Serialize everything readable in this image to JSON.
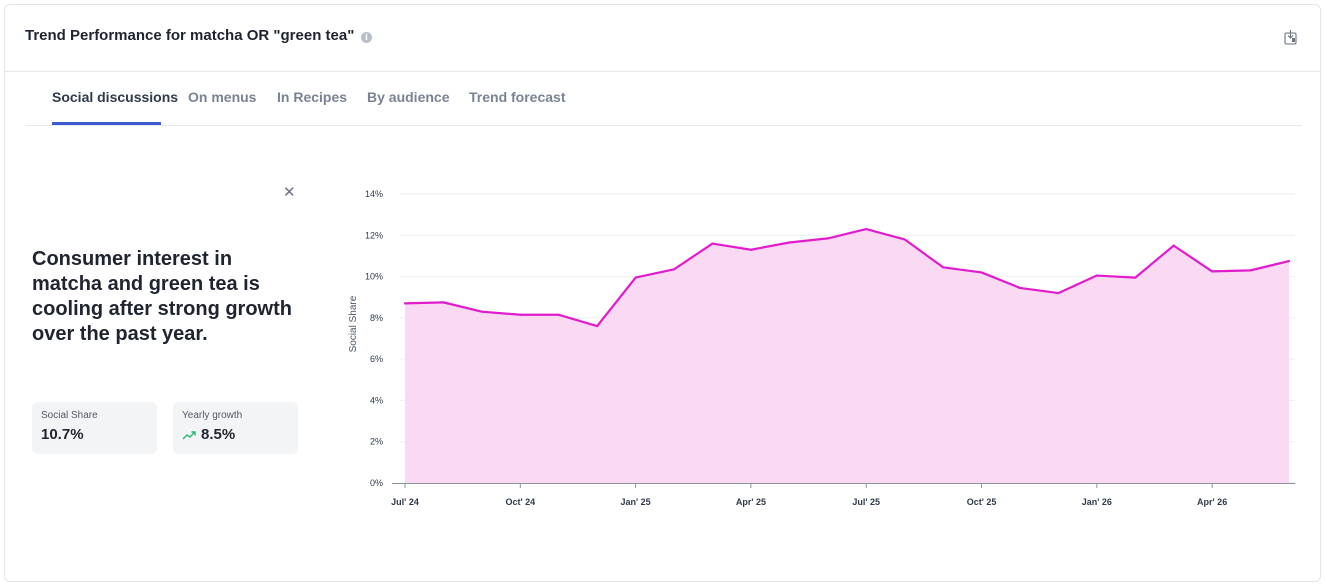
{
  "header": {
    "title": "Trend Performance for matcha OR \"green tea\"",
    "info_icon": "info-icon",
    "export_icon": "export-icon"
  },
  "tabs": [
    {
      "label": "Social discussions",
      "active": true
    },
    {
      "label": "On menus",
      "active": false
    },
    {
      "label": "In Recipes",
      "active": false
    },
    {
      "label": "By audience",
      "active": false
    },
    {
      "label": "Trend forecast",
      "active": false
    }
  ],
  "insight": {
    "close_icon": "close-icon",
    "headline": "Consumer interest in matcha and green tea is cooling after strong growth over the past year."
  },
  "stats": [
    {
      "label": "Social Share",
      "value": "10.7%"
    },
    {
      "label": "Yearly growth",
      "value": "8.5%",
      "icon": "trend-up-icon"
    }
  ],
  "colors": {
    "accent": "#3b5bd6",
    "line": "#e01ccc",
    "area": "#fad9f3",
    "growth": "#2bb673"
  },
  "chart_data": {
    "type": "area",
    "ylabel": "Social Share",
    "xlabel": "",
    "ylim": [
      0,
      14
    ],
    "y_ticks": [
      "0%",
      "2%",
      "4%",
      "6%",
      "8%",
      "10%",
      "12%",
      "14%"
    ],
    "x_ticks": [
      "Jul' 24",
      "Oct' 24",
      "Jan' 25",
      "Apr' 25",
      "Jul' 25",
      "Oct' 25",
      "Jan' 26",
      "Apr' 26"
    ],
    "x": [
      "Jul' 24",
      "Aug' 24",
      "Sep' 24",
      "Oct' 24",
      "Nov' 24",
      "Dec' 24",
      "Jan' 25",
      "Feb' 25",
      "Mar' 25",
      "Apr' 25",
      "May' 25",
      "Jun' 25",
      "Jul' 25",
      "Aug' 25",
      "Sep' 25",
      "Oct' 25",
      "Nov' 25",
      "Dec' 25",
      "Jan' 26",
      "Feb' 26",
      "Mar' 26",
      "Apr' 26",
      "May' 26",
      "Jun' 26"
    ],
    "values": [
      8.7,
      8.75,
      8.3,
      8.15,
      8.15,
      7.6,
      9.95,
      10.35,
      11.6,
      11.3,
      11.65,
      11.85,
      12.3,
      11.8,
      10.45,
      10.2,
      9.45,
      9.2,
      10.05,
      9.95,
      11.5,
      10.25,
      10.3,
      10.75
    ],
    "grid": true
  }
}
